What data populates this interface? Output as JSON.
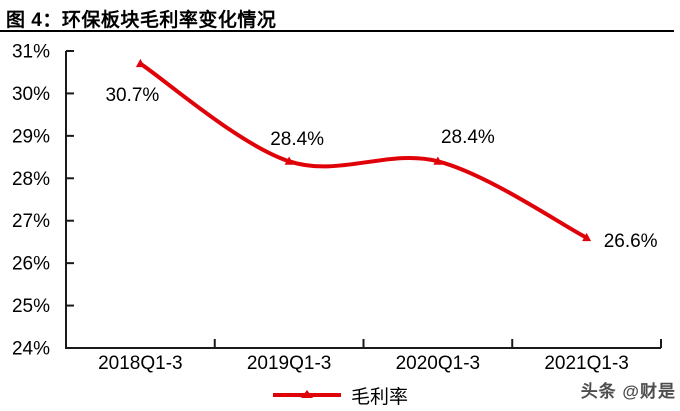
{
  "figure": {
    "title": "图 4：环保板块毛利率变化情况"
  },
  "legend": {
    "label": "毛利率"
  },
  "watermark": "头条 @财是",
  "chart_data": {
    "type": "line",
    "title": "图 4：环保板块毛利率变化情况",
    "categories": [
      "2018Q1-3",
      "2019Q1-3",
      "2020Q1-3",
      "2021Q1-3"
    ],
    "series": [
      {
        "name": "毛利率",
        "values": [
          30.7,
          28.4,
          28.4,
          26.6
        ]
      }
    ],
    "data_labels": [
      "30.7%",
      "28.4%",
      "28.4%",
      "26.6%"
    ],
    "y_tick_labels": [
      "31%",
      "30%",
      "29%",
      "28%",
      "27%",
      "26%",
      "25%",
      "24%"
    ],
    "ylim": [
      24,
      31
    ],
    "y_tick_step": 1,
    "xlabel": "",
    "ylabel": "",
    "grid": false,
    "smooth": true,
    "marker": "triangle",
    "legend_position": "bottom-center",
    "line_color": "#e00209",
    "axis_color": "#1a1a1a",
    "label_color": "#000000"
  }
}
